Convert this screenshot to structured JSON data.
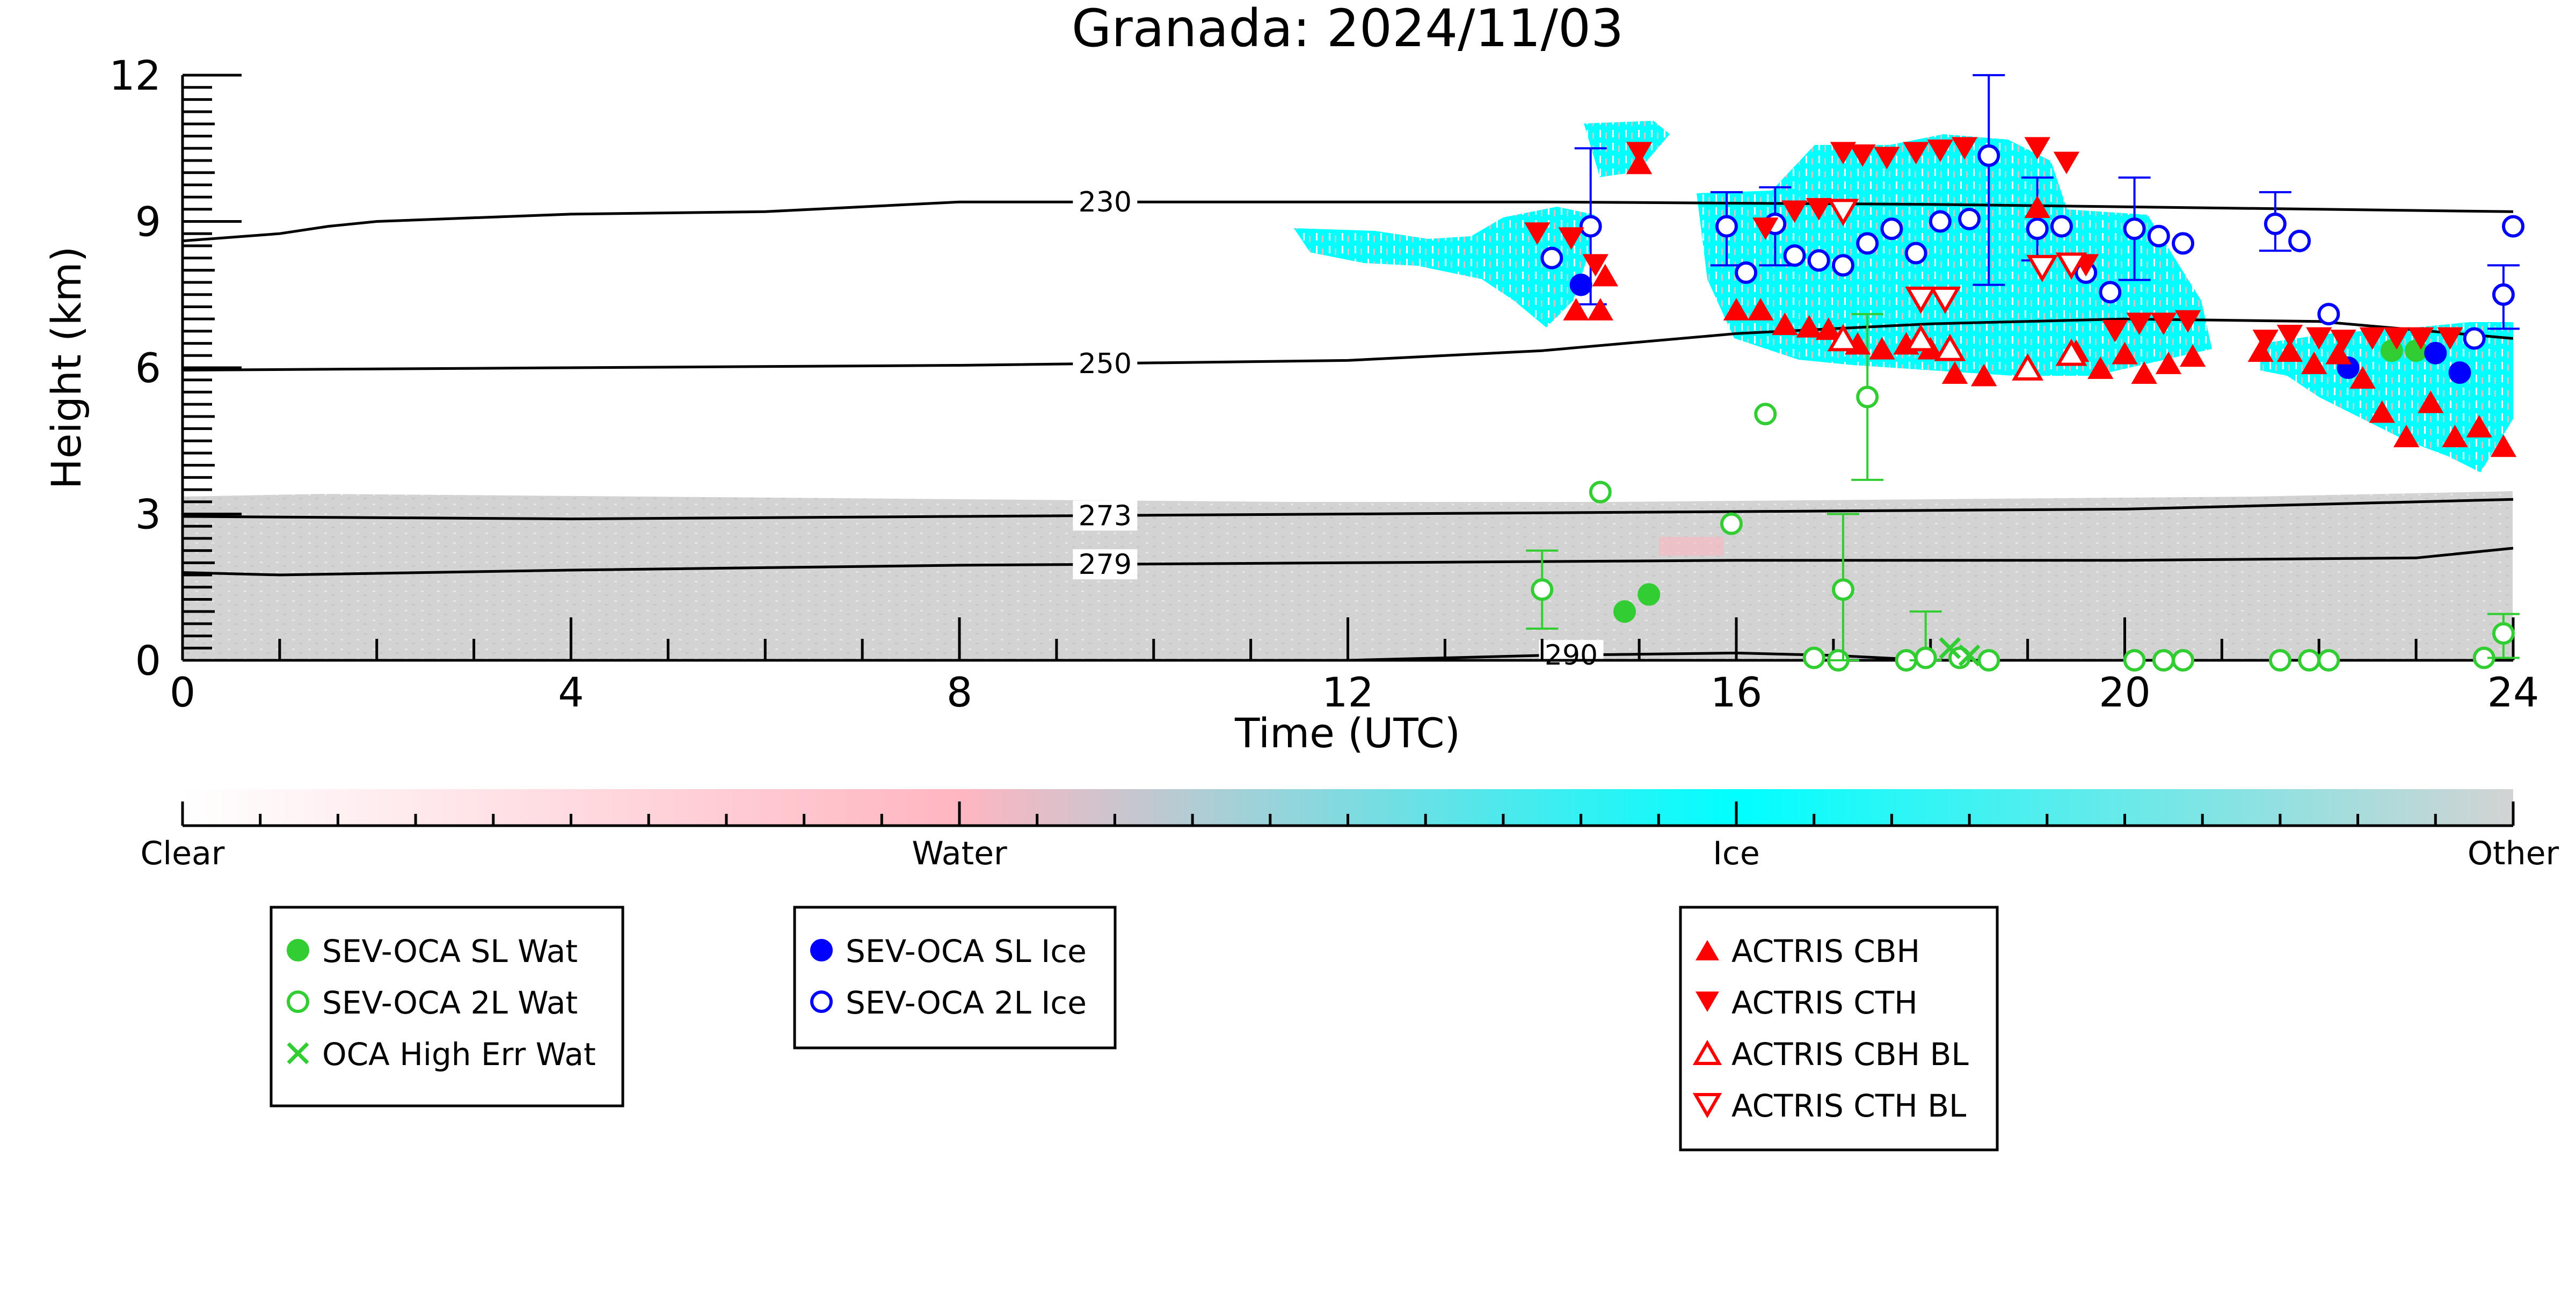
{
  "chart_data": {
    "type": "scatter",
    "title": "Granada: 2024/11/03",
    "xlabel": "Time (UTC)",
    "ylabel": "Height (km)",
    "xlim": [
      0,
      24
    ],
    "ylim": [
      0,
      12
    ],
    "x_ticks": [
      0,
      4,
      8,
      12,
      16,
      20,
      24
    ],
    "y_ticks": [
      0,
      3,
      6,
      9,
      12
    ],
    "grid": false,
    "colors": {
      "clear": "#ffffff",
      "water": "#ffb6c1",
      "ice": "#00ffff",
      "other": "#d3d3d3",
      "sl_wat": "#32cd32",
      "sl_ice": "#0000ff",
      "actris": "#ff0000",
      "isotherm": "#000000"
    },
    "colorbar": {
      "labels": [
        "Clear",
        "Water",
        "Ice",
        "Other"
      ]
    },
    "isotherms": [
      {
        "label": "230",
        "label_x": 9.5,
        "points": [
          [
            0,
            8.6
          ],
          [
            1,
            8.75
          ],
          [
            1.5,
            8.9
          ],
          [
            2,
            9.0
          ],
          [
            4,
            9.15
          ],
          [
            6,
            9.2
          ],
          [
            8,
            9.4
          ],
          [
            10,
            9.4
          ],
          [
            14,
            9.4
          ],
          [
            18,
            9.35
          ],
          [
            22,
            9.25
          ],
          [
            24,
            9.2
          ]
        ]
      },
      {
        "label": "250",
        "label_x": 9.5,
        "points": [
          [
            0,
            5.95
          ],
          [
            4,
            6.0
          ],
          [
            8,
            6.05
          ],
          [
            12,
            6.15
          ],
          [
            14,
            6.35
          ],
          [
            16,
            6.7
          ],
          [
            18,
            6.9
          ],
          [
            20,
            7.0
          ],
          [
            22,
            6.95
          ],
          [
            24,
            6.6
          ]
        ]
      },
      {
        "label": "273",
        "label_x": 9.5,
        "points": [
          [
            0,
            2.95
          ],
          [
            4,
            2.9
          ],
          [
            8,
            2.95
          ],
          [
            12,
            3.0
          ],
          [
            16,
            3.05
          ],
          [
            20,
            3.1
          ],
          [
            24,
            3.3
          ]
        ]
      },
      {
        "label": "279",
        "label_x": 9.5,
        "points": [
          [
            0,
            1.8
          ],
          [
            1,
            1.75
          ],
          [
            4,
            1.85
          ],
          [
            8,
            1.95
          ],
          [
            12,
            2.0
          ],
          [
            16,
            2.05
          ],
          [
            20,
            2.05
          ],
          [
            23,
            2.1
          ],
          [
            24,
            2.3
          ]
        ]
      },
      {
        "label": "290",
        "label_x": 14.3,
        "points": [
          [
            12,
            0.0
          ],
          [
            14,
            0.1
          ],
          [
            16,
            0.15
          ],
          [
            17,
            0.1
          ],
          [
            18,
            0.0
          ]
        ]
      }
    ],
    "series": [
      {
        "name": "SEV-OCA SL Wat",
        "marker": "filled-circle",
        "color": "#32cd32",
        "points": [
          {
            "x": 14.85,
            "y": 1.0
          },
          {
            "x": 15.1,
            "y": 1.35
          },
          {
            "x": 22.75,
            "y": 6.35
          },
          {
            "x": 23.0,
            "y": 6.35
          }
        ]
      },
      {
        "name": "SEV-OCA 2L Wat",
        "marker": "open-circle",
        "color": "#32cd32",
        "points": [
          {
            "x": 14.0,
            "y": 1.45,
            "lo": 0.65,
            "hi": 2.25
          },
          {
            "x": 14.6,
            "y": 3.45
          },
          {
            "x": 15.95,
            "y": 2.8
          },
          {
            "x": 16.3,
            "y": 5.05
          },
          {
            "x": 16.8,
            "y": 0.05
          },
          {
            "x": 17.05,
            "y": 0.0
          },
          {
            "x": 17.1,
            "y": 1.45,
            "lo": 0.0,
            "hi": 3.0
          },
          {
            "x": 17.35,
            "y": 5.4,
            "lo": 3.7,
            "hi": 7.1
          },
          {
            "x": 17.75,
            "y": 0.0
          },
          {
            "x": 17.95,
            "y": 0.05,
            "lo": 0.0,
            "hi": 1.0
          },
          {
            "x": 18.3,
            "y": 0.05
          },
          {
            "x": 18.6,
            "y": 0.0
          },
          {
            "x": 20.1,
            "y": 0.0
          },
          {
            "x": 20.4,
            "y": 0.0
          },
          {
            "x": 20.6,
            "y": 0.0
          },
          {
            "x": 21.6,
            "y": 0.0
          },
          {
            "x": 21.9,
            "y": 0.0
          },
          {
            "x": 22.1,
            "y": 0.0
          },
          {
            "x": 23.7,
            "y": 0.05
          },
          {
            "x": 23.9,
            "y": 0.55,
            "lo": 0.05,
            "hi": 0.95
          }
        ]
      },
      {
        "name": "OCA High Err Wat",
        "marker": "x",
        "color": "#32cd32",
        "points": [
          {
            "x": 18.2,
            "y": 0.25
          },
          {
            "x": 18.4,
            "y": 0.1
          }
        ]
      },
      {
        "name": "SEV-OCA SL Ice",
        "marker": "filled-circle",
        "color": "#0000ff",
        "points": [
          {
            "x": 14.4,
            "y": 7.7
          },
          {
            "x": 22.3,
            "y": 6.0
          },
          {
            "x": 23.2,
            "y": 6.3
          },
          {
            "x": 23.45,
            "y": 5.9
          }
        ]
      },
      {
        "name": "SEV-OCA 2L Ice",
        "marker": "open-circle",
        "color": "#0000ff",
        "points": [
          {
            "x": 14.1,
            "y": 8.25
          },
          {
            "x": 14.5,
            "y": 8.9,
            "lo": 7.3,
            "hi": 10.5
          },
          {
            "x": 15.9,
            "y": 8.9,
            "lo": 8.1,
            "hi": 9.6
          },
          {
            "x": 16.1,
            "y": 7.95
          },
          {
            "x": 16.4,
            "y": 8.95,
            "lo": 8.1,
            "hi": 9.7
          },
          {
            "x": 16.6,
            "y": 8.3
          },
          {
            "x": 16.85,
            "y": 8.2
          },
          {
            "x": 17.1,
            "y": 8.1
          },
          {
            "x": 17.35,
            "y": 8.55
          },
          {
            "x": 17.6,
            "y": 8.85
          },
          {
            "x": 17.85,
            "y": 8.35
          },
          {
            "x": 18.1,
            "y": 9.0
          },
          {
            "x": 18.4,
            "y": 9.05
          },
          {
            "x": 18.6,
            "y": 10.35,
            "lo": 7.7,
            "hi": 12.0
          },
          {
            "x": 19.1,
            "y": 8.85,
            "lo": 8.2,
            "hi": 9.9
          },
          {
            "x": 19.35,
            "y": 8.9
          },
          {
            "x": 19.6,
            "y": 7.95
          },
          {
            "x": 19.85,
            "y": 7.55
          },
          {
            "x": 20.1,
            "y": 8.85,
            "lo": 7.8,
            "hi": 9.9
          },
          {
            "x": 20.35,
            "y": 8.7
          },
          {
            "x": 20.6,
            "y": 8.55
          },
          {
            "x": 21.55,
            "y": 8.95,
            "lo": 8.4,
            "hi": 9.6
          },
          {
            "x": 21.8,
            "y": 8.6
          },
          {
            "x": 22.1,
            "y": 7.1
          },
          {
            "x": 23.6,
            "y": 6.6
          },
          {
            "x": 23.9,
            "y": 7.5,
            "lo": 6.8,
            "hi": 8.1
          },
          {
            "x": 24.0,
            "y": 8.9
          }
        ]
      },
      {
        "name": "ACTRIS CBH",
        "marker": "filled-triangle-up",
        "color": "#ff0000",
        "points": [
          {
            "x": 14.35,
            "y": 7.2
          },
          {
            "x": 14.6,
            "y": 7.2
          },
          {
            "x": 14.65,
            "y": 7.9
          },
          {
            "x": 15.0,
            "y": 10.2
          },
          {
            "x": 16.0,
            "y": 7.2
          },
          {
            "x": 16.25,
            "y": 7.2
          },
          {
            "x": 16.5,
            "y": 6.9
          },
          {
            "x": 16.75,
            "y": 6.85
          },
          {
            "x": 16.95,
            "y": 6.8
          },
          {
            "x": 17.25,
            "y": 6.5
          },
          {
            "x": 17.5,
            "y": 6.4
          },
          {
            "x": 17.75,
            "y": 6.5
          },
          {
            "x": 18.0,
            "y": 6.4
          },
          {
            "x": 18.25,
            "y": 5.9
          },
          {
            "x": 18.55,
            "y": 5.85
          },
          {
            "x": 19.1,
            "y": 9.3
          },
          {
            "x": 19.5,
            "y": 6.35
          },
          {
            "x": 19.75,
            "y": 6.0
          },
          {
            "x": 20.0,
            "y": 6.3
          },
          {
            "x": 20.2,
            "y": 5.9
          },
          {
            "x": 20.45,
            "y": 6.1
          },
          {
            "x": 20.7,
            "y": 6.25
          },
          {
            "x": 21.4,
            "y": 6.35
          },
          {
            "x": 21.7,
            "y": 6.35
          },
          {
            "x": 21.95,
            "y": 6.1
          },
          {
            "x": 22.2,
            "y": 6.3
          },
          {
            "x": 22.45,
            "y": 5.8
          },
          {
            "x": 22.65,
            "y": 5.1
          },
          {
            "x": 22.9,
            "y": 4.6
          },
          {
            "x": 23.15,
            "y": 5.3
          },
          {
            "x": 23.4,
            "y": 4.6
          },
          {
            "x": 23.65,
            "y": 4.8
          },
          {
            "x": 23.9,
            "y": 4.4
          }
        ]
      },
      {
        "name": "ACTRIS CTH",
        "marker": "filled-triangle-down",
        "color": "#ff0000",
        "points": [
          {
            "x": 13.95,
            "y": 8.75
          },
          {
            "x": 14.3,
            "y": 8.65
          },
          {
            "x": 14.55,
            "y": 8.1
          },
          {
            "x": 15.0,
            "y": 10.4
          },
          {
            "x": 16.3,
            "y": 8.85
          },
          {
            "x": 16.6,
            "y": 9.2
          },
          {
            "x": 16.85,
            "y": 9.25
          },
          {
            "x": 17.1,
            "y": 10.4
          },
          {
            "x": 17.3,
            "y": 10.35
          },
          {
            "x": 17.55,
            "y": 10.3
          },
          {
            "x": 17.85,
            "y": 10.4
          },
          {
            "x": 18.1,
            "y": 10.45
          },
          {
            "x": 18.35,
            "y": 10.5
          },
          {
            "x": 19.1,
            "y": 10.5
          },
          {
            "x": 19.4,
            "y": 10.2
          },
          {
            "x": 19.6,
            "y": 8.1
          },
          {
            "x": 19.9,
            "y": 6.75
          },
          {
            "x": 20.15,
            "y": 6.9
          },
          {
            "x": 20.4,
            "y": 6.9
          },
          {
            "x": 20.65,
            "y": 6.95
          },
          {
            "x": 21.45,
            "y": 6.55
          },
          {
            "x": 21.7,
            "y": 6.65
          },
          {
            "x": 22.0,
            "y": 6.6
          },
          {
            "x": 22.25,
            "y": 6.55
          },
          {
            "x": 22.55,
            "y": 6.6
          },
          {
            "x": 22.8,
            "y": 6.6
          },
          {
            "x": 23.05,
            "y": 6.6
          },
          {
            "x": 23.35,
            "y": 6.6
          }
        ]
      },
      {
        "name": "ACTRIS CBH BL",
        "marker": "open-triangle-up",
        "color": "#ff0000",
        "points": [
          {
            "x": 17.1,
            "y": 6.6
          },
          {
            "x": 17.9,
            "y": 6.6
          },
          {
            "x": 18.2,
            "y": 6.4
          },
          {
            "x": 19.0,
            "y": 6.0
          },
          {
            "x": 19.45,
            "y": 6.3
          }
        ]
      },
      {
        "name": "ACTRIS CTH BL",
        "marker": "open-triangle-down",
        "color": "#ff0000",
        "points": [
          {
            "x": 17.1,
            "y": 9.2
          },
          {
            "x": 17.9,
            "y": 7.4
          },
          {
            "x": 18.15,
            "y": 7.4
          },
          {
            "x": 19.15,
            "y": 8.05
          },
          {
            "x": 19.45,
            "y": 8.1
          }
        ]
      }
    ]
  },
  "legends": [
    {
      "items": [
        {
          "label": "SEV-OCA SL Wat",
          "marker": "filled-circle",
          "color": "#32cd32"
        },
        {
          "label": "SEV-OCA 2L Wat",
          "marker": "open-circle",
          "color": "#32cd32"
        },
        {
          "label": "OCA High Err Wat",
          "marker": "x",
          "color": "#32cd32"
        }
      ]
    },
    {
      "items": [
        {
          "label": "SEV-OCA SL Ice",
          "marker": "filled-circle",
          "color": "#0000ff"
        },
        {
          "label": "SEV-OCA 2L Ice",
          "marker": "open-circle",
          "color": "#0000ff"
        }
      ]
    },
    {
      "items": [
        {
          "label": "ACTRIS CBH",
          "marker": "filled-triangle-up",
          "color": "#ff0000"
        },
        {
          "label": "ACTRIS CTH",
          "marker": "filled-triangle-down",
          "color": "#ff0000"
        },
        {
          "label": "ACTRIS CBH BL",
          "marker": "open-triangle-up",
          "color": "#ff0000"
        },
        {
          "label": "ACTRIS CTH BL",
          "marker": "open-triangle-down",
          "color": "#ff0000"
        }
      ]
    }
  ]
}
